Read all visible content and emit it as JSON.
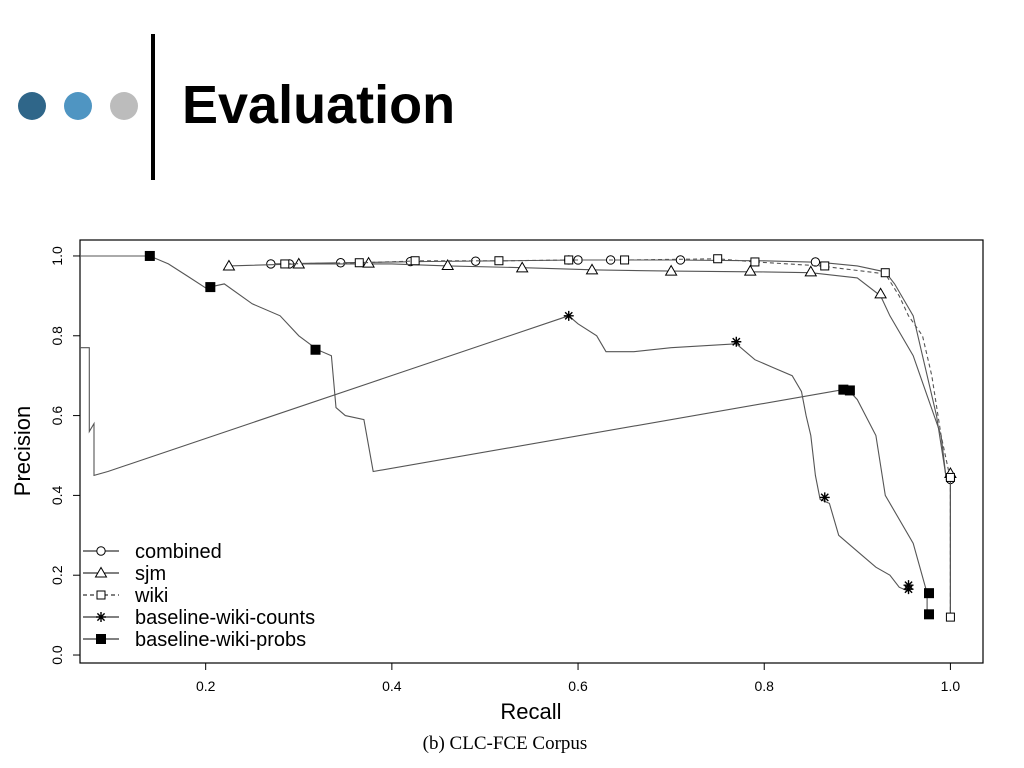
{
  "slide": {
    "title": "Evaluation",
    "bullet_colors": [
      "#2f6689",
      "#4f95c2",
      "#bcbcbc"
    ]
  },
  "caption": "(b) CLC-FCE Corpus",
  "chart_data": {
    "type": "line",
    "title": "",
    "xlabel": "Recall",
    "ylabel": "Precision",
    "xlim": [
      0.065,
      1.035
    ],
    "ylim": [
      -0.02,
      1.04
    ],
    "xticks": [
      0.2,
      0.4,
      0.6,
      0.8,
      1.0
    ],
    "xtick_labels": [
      "0.2",
      "0.4",
      "0.6",
      "0.8",
      "1.0"
    ],
    "yticks": [
      0.0,
      0.2,
      0.4,
      0.6,
      0.8,
      1.0
    ],
    "ytick_labels": [
      "0.0",
      "0.2",
      "0.4",
      "0.6",
      "0.8",
      "1.0"
    ],
    "grid": false,
    "legend_position": "bottom-left",
    "series": [
      {
        "name": "combined",
        "marker": "circle",
        "line_style": "solid",
        "color": "#555555",
        "points": [
          [
            0.27,
            0.98
          ],
          [
            0.35,
            0.983
          ],
          [
            0.44,
            0.986
          ],
          [
            0.52,
            0.988
          ],
          [
            0.6,
            0.99
          ],
          [
            0.7,
            0.99
          ],
          [
            0.8,
            0.988
          ],
          [
            0.86,
            0.984
          ],
          [
            0.9,
            0.975
          ],
          [
            0.93,
            0.96
          ],
          [
            0.94,
            0.93
          ],
          [
            0.96,
            0.85
          ],
          [
            0.97,
            0.75
          ],
          [
            0.985,
            0.6
          ],
          [
            0.995,
            0.45
          ],
          [
            1.0,
            0.44
          ],
          [
            1.0,
            0.09
          ]
        ],
        "markers": [
          [
            0.27,
            0.98
          ],
          [
            0.29,
            0.98
          ],
          [
            0.345,
            0.983
          ],
          [
            0.42,
            0.986
          ],
          [
            0.49,
            0.987
          ],
          [
            0.59,
            0.99
          ],
          [
            0.6,
            0.99
          ],
          [
            0.635,
            0.99
          ],
          [
            0.71,
            0.99
          ],
          [
            0.855,
            0.985
          ],
          [
            1.0,
            0.44
          ]
        ]
      },
      {
        "name": "sjm",
        "marker": "triangle",
        "line_style": "solid",
        "color": "#555555",
        "points": [
          [
            0.225,
            0.975
          ],
          [
            0.3,
            0.98
          ],
          [
            0.4,
            0.98
          ],
          [
            0.46,
            0.975
          ],
          [
            0.55,
            0.97
          ],
          [
            0.62,
            0.965
          ],
          [
            0.7,
            0.962
          ],
          [
            0.8,
            0.96
          ],
          [
            0.85,
            0.958
          ],
          [
            0.9,
            0.945
          ],
          [
            0.925,
            0.9
          ],
          [
            0.935,
            0.85
          ],
          [
            0.96,
            0.75
          ],
          [
            0.975,
            0.65
          ],
          [
            0.99,
            0.55
          ],
          [
            0.995,
            0.45
          ],
          [
            1.0,
            0.45
          ],
          [
            1.0,
            0.09
          ]
        ],
        "markers": [
          [
            0.225,
            0.975
          ],
          [
            0.3,
            0.98
          ],
          [
            0.375,
            0.982
          ],
          [
            0.46,
            0.976
          ],
          [
            0.54,
            0.97
          ],
          [
            0.615,
            0.965
          ],
          [
            0.7,
            0.962
          ],
          [
            0.785,
            0.962
          ],
          [
            0.85,
            0.96
          ],
          [
            0.925,
            0.905
          ],
          [
            1.0,
            0.455
          ]
        ]
      },
      {
        "name": "wiki",
        "marker": "square",
        "line_style": "dashed",
        "color": "#555555",
        "points": [
          [
            0.28,
            0.98
          ],
          [
            0.37,
            0.983
          ],
          [
            0.43,
            0.988
          ],
          [
            0.52,
            0.988
          ],
          [
            0.59,
            0.99
          ],
          [
            0.65,
            0.99
          ],
          [
            0.75,
            0.993
          ],
          [
            0.79,
            0.985
          ],
          [
            0.86,
            0.975
          ],
          [
            0.93,
            0.955
          ],
          [
            0.945,
            0.9
          ],
          [
            0.955,
            0.85
          ],
          [
            0.97,
            0.8
          ],
          [
            0.98,
            0.7
          ],
          [
            0.99,
            0.55
          ],
          [
            1.0,
            0.44
          ],
          [
            1.0,
            0.09
          ]
        ],
        "markers": [
          [
            0.285,
            0.98
          ],
          [
            0.365,
            0.983
          ],
          [
            0.425,
            0.988
          ],
          [
            0.515,
            0.988
          ],
          [
            0.59,
            0.99
          ],
          [
            0.65,
            0.99
          ],
          [
            0.75,
            0.993
          ],
          [
            0.79,
            0.985
          ],
          [
            0.865,
            0.975
          ],
          [
            0.93,
            0.958
          ],
          [
            1.0,
            0.445
          ],
          [
            1.0,
            0.095
          ]
        ]
      },
      {
        "name": "baseline-wiki-counts",
        "marker": "asterisk",
        "line_style": "solid",
        "color": "#555555",
        "points": [
          [
            0.065,
            0.77
          ],
          [
            0.075,
            0.77
          ],
          [
            0.075,
            0.56
          ],
          [
            0.08,
            0.58
          ],
          [
            0.08,
            0.45
          ],
          [
            0.095,
            0.46
          ],
          [
            0.59,
            0.85
          ],
          [
            0.6,
            0.83
          ],
          [
            0.62,
            0.8
          ],
          [
            0.63,
            0.76
          ],
          [
            0.66,
            0.76
          ],
          [
            0.7,
            0.77
          ],
          [
            0.77,
            0.78
          ],
          [
            0.79,
            0.74
          ],
          [
            0.81,
            0.72
          ],
          [
            0.83,
            0.7
          ],
          [
            0.84,
            0.66
          ],
          [
            0.845,
            0.6
          ],
          [
            0.85,
            0.55
          ],
          [
            0.855,
            0.45
          ],
          [
            0.86,
            0.39
          ],
          [
            0.87,
            0.38
          ],
          [
            0.88,
            0.3
          ],
          [
            0.89,
            0.28
          ],
          [
            0.905,
            0.25
          ],
          [
            0.92,
            0.22
          ],
          [
            0.935,
            0.2
          ],
          [
            0.945,
            0.17
          ],
          [
            0.955,
            0.16
          ]
        ],
        "markers": [
          [
            0.59,
            0.85
          ],
          [
            0.77,
            0.785
          ],
          [
            0.865,
            0.395
          ],
          [
            0.955,
            0.165
          ],
          [
            0.955,
            0.175
          ]
        ]
      },
      {
        "name": "baseline-wiki-probs",
        "marker": "filled-square",
        "line_style": "solid",
        "color": "#555555",
        "points": [
          [
            0.065,
            1.0
          ],
          [
            0.14,
            1.0
          ],
          [
            0.16,
            0.98
          ],
          [
            0.18,
            0.95
          ],
          [
            0.2,
            0.92
          ],
          [
            0.22,
            0.93
          ],
          [
            0.25,
            0.88
          ],
          [
            0.28,
            0.85
          ],
          [
            0.3,
            0.8
          ],
          [
            0.32,
            0.765
          ],
          [
            0.335,
            0.75
          ],
          [
            0.34,
            0.62
          ],
          [
            0.35,
            0.6
          ],
          [
            0.37,
            0.59
          ],
          [
            0.38,
            0.46
          ],
          [
            0.885,
            0.665
          ],
          [
            0.89,
            0.665
          ],
          [
            0.9,
            0.64
          ],
          [
            0.92,
            0.55
          ],
          [
            0.93,
            0.4
          ],
          [
            0.96,
            0.28
          ],
          [
            0.975,
            0.155
          ],
          [
            0.975,
            0.1
          ]
        ],
        "markers": [
          [
            0.14,
            1.0
          ],
          [
            0.205,
            0.922
          ],
          [
            0.318,
            0.765
          ],
          [
            0.885,
            0.665
          ],
          [
            0.892,
            0.663
          ],
          [
            0.977,
            0.155
          ],
          [
            0.977,
            0.102
          ]
        ]
      }
    ]
  }
}
